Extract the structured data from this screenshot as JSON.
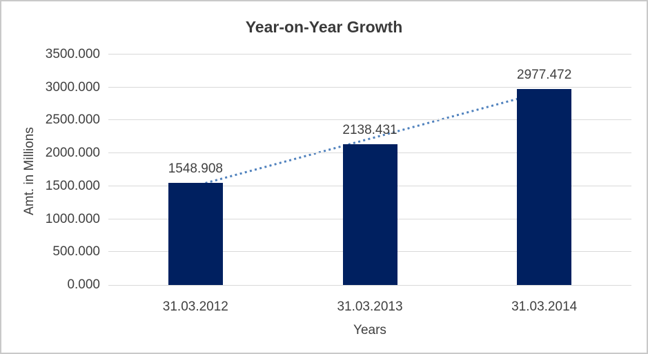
{
  "chart_data": {
    "type": "bar",
    "title": "Year-on-Year Growth",
    "categories": [
      "31.03.2012",
      "31.03.2013",
      "31.03.2014"
    ],
    "values": [
      1548.908,
      2138.431,
      2977.472
    ],
    "data_labels": [
      "1548.908",
      "2138.431",
      "2977.472"
    ],
    "xlabel": "Years",
    "ylabel": "Amt. in Millions",
    "ylim": [
      0,
      3500
    ],
    "ytick_step": 500,
    "ytick_labels": [
      "0.000",
      "500.000",
      "1000.000",
      "1500.000",
      "2000.000",
      "2500.000",
      "3000.000",
      "3500.000"
    ],
    "grid": true,
    "legend": "none",
    "trendline": {
      "type": "linear",
      "style": "dotted"
    }
  },
  "colors": {
    "bar": "#002060",
    "trendline": "#4f81bd",
    "gridline": "#d9d9d9",
    "axis_text": "#404040",
    "title_text": "#3a3a3a",
    "border": "#c9c9c9",
    "background": "#ffffff"
  }
}
